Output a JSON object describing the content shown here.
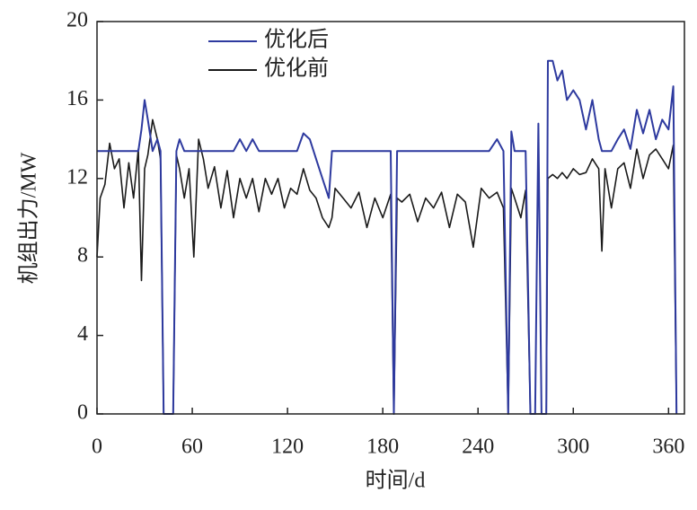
{
  "chart_data": {
    "type": "line",
    "x_label": "时间/d",
    "y_label": "机组出力/MW",
    "x": [
      0,
      2,
      5,
      8,
      11,
      14,
      17,
      20,
      23,
      26,
      28,
      30,
      32,
      35,
      38,
      40,
      42,
      45,
      48,
      50,
      52,
      55,
      58,
      61,
      64,
      67,
      70,
      74,
      78,
      82,
      86,
      90,
      94,
      98,
      102,
      106,
      110,
      114,
      118,
      122,
      126,
      130,
      134,
      138,
      142,
      146,
      148,
      150,
      155,
      160,
      165,
      170,
      175,
      180,
      185,
      187,
      189,
      192,
      197,
      202,
      207,
      212,
      217,
      222,
      227,
      232,
      237,
      242,
      247,
      252,
      256,
      259,
      261,
      263,
      267,
      270,
      273,
      276,
      278,
      280,
      283,
      284,
      287,
      290,
      293,
      296,
      300,
      304,
      308,
      312,
      316,
      318,
      320,
      324,
      328,
      332,
      336,
      340,
      344,
      348,
      352,
      356,
      360,
      363,
      365
    ],
    "series": [
      {
        "name": "优化后",
        "color": "#2e3a9f",
        "values": [
          13.4,
          13.4,
          13.4,
          13.4,
          13.4,
          13.4,
          13.4,
          13.4,
          13.4,
          13.4,
          14.5,
          16,
          15,
          13.4,
          14,
          13.4,
          0,
          0,
          0,
          13.4,
          14,
          13.4,
          13.4,
          13.4,
          13.4,
          13.4,
          13.4,
          13.4,
          13.4,
          13.4,
          13.4,
          14,
          13.4,
          14,
          13.4,
          13.4,
          13.4,
          13.4,
          13.4,
          13.4,
          13.4,
          14.3,
          14,
          13,
          12,
          11,
          13.4,
          13.4,
          13.4,
          13.4,
          13.4,
          13.4,
          13.4,
          13.4,
          13.4,
          0,
          13.4,
          13.4,
          13.4,
          13.4,
          13.4,
          13.4,
          13.4,
          13.4,
          13.4,
          13.4,
          13.4,
          13.4,
          13.4,
          14,
          13.4,
          0,
          14.4,
          13.4,
          13.4,
          13.4,
          0,
          0,
          14.8,
          0,
          0,
          18,
          18,
          17,
          17.5,
          16,
          16.5,
          16,
          14.5,
          16,
          14,
          13.4,
          13.4,
          13.4,
          14,
          14.5,
          13.5,
          15.5,
          14.3,
          15.5,
          14,
          15,
          14.5,
          16.7,
          0
        ]
      },
      {
        "name": "优化前",
        "color": "#1a1a1a",
        "values": [
          8,
          11,
          11.7,
          13.8,
          12.5,
          13,
          10.5,
          12.8,
          11,
          13.5,
          6.8,
          12.5,
          13.2,
          15,
          14,
          13,
          0,
          0,
          0,
          13.2,
          12.5,
          11,
          12.5,
          8,
          14,
          13,
          11.5,
          12.6,
          10.5,
          12.4,
          10,
          12,
          11,
          12,
          10.3,
          12,
          11.2,
          12,
          10.5,
          11.5,
          11.2,
          12.5,
          11.4,
          11,
          10,
          9.5,
          10,
          11.5,
          11,
          10.5,
          11.3,
          9.5,
          11,
          10,
          11.2,
          0,
          11,
          10.8,
          11.2,
          9.8,
          11,
          10.5,
          11.3,
          9.5,
          11.2,
          10.8,
          8.5,
          11.5,
          11,
          11.3,
          10.5,
          0,
          11.5,
          11,
          10,
          11.4,
          0,
          0,
          0,
          0,
          0,
          12,
          12.2,
          12,
          12.3,
          12,
          12.5,
          12.2,
          12.3,
          13,
          12.5,
          8.3,
          12.5,
          10.5,
          12.5,
          12.8,
          11.5,
          13.5,
          12,
          13.2,
          13.5,
          13,
          12.5,
          13.7,
          0
        ]
      }
    ],
    "xlim": [
      0,
      370
    ],
    "ylim": [
      0,
      20
    ],
    "xticks": [
      0,
      60,
      120,
      180,
      240,
      300,
      360
    ],
    "yticks": [
      0,
      4,
      8,
      12,
      16,
      20
    ],
    "legend": "upper left"
  }
}
